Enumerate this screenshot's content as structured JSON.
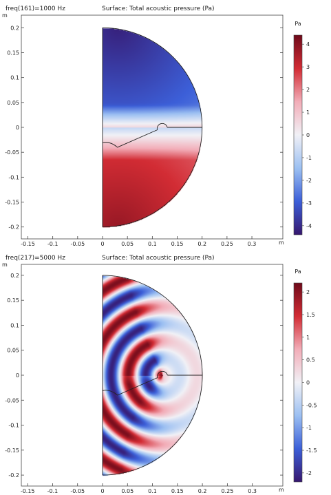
{
  "chart_data": [
    {
      "type": "heatmap",
      "header_left": "freq(161)=1000 Hz",
      "title": "Surface: Total acoustic pressure (Pa)",
      "x_unit": "m",
      "y_unit": "m",
      "x_ticks": [
        "-0.15",
        "-0.1",
        "-0.05",
        "0",
        "0.05",
        "0.1",
        "0.15",
        "0.2",
        "0.25",
        "0.3"
      ],
      "x_tick_values": [
        -0.15,
        -0.1,
        -0.05,
        0,
        0.05,
        0.1,
        0.15,
        0.2,
        0.25,
        0.3
      ],
      "y_ticks": [
        "0.2",
        "0.15",
        "0.1",
        "0.05",
        "0",
        "-0.05",
        "-0.1",
        "-0.15",
        "-0.2"
      ],
      "y_tick_values": [
        0.2,
        0.15,
        0.1,
        0.05,
        0,
        -0.05,
        -0.1,
        -0.15,
        -0.2
      ],
      "xlim": [
        -0.16,
        0.36
      ],
      "ylim": [
        -0.22,
        0.22
      ],
      "colorbar": {
        "label": "Pa",
        "range": [
          -4.4,
          4.4
        ],
        "ticks": [
          "4",
          "3",
          "2",
          "1",
          "0",
          "-1",
          "-2",
          "-3",
          "-4"
        ],
        "tick_values": [
          4,
          3,
          2,
          1,
          0,
          -1,
          -2,
          -3,
          -4
        ]
      },
      "colormap": [
        "#36176e",
        "#3c5fd8",
        "#9cc0f2",
        "#f1f1f6",
        "#f2adb8",
        "#d22c34",
        "#6e0a1a"
      ]
    },
    {
      "type": "heatmap",
      "header_left": "freq(217)=5000 Hz",
      "title": "Surface: Total acoustic pressure (Pa)",
      "x_unit": "m",
      "y_unit": "m",
      "x_ticks": [
        "-0.15",
        "-0.1",
        "-0.05",
        "0",
        "0.05",
        "0.1",
        "0.15",
        "0.2",
        "0.25",
        "0.3"
      ],
      "x_tick_values": [
        -0.15,
        -0.1,
        -0.05,
        0,
        0.05,
        0.1,
        0.15,
        0.2,
        0.25,
        0.3
      ],
      "y_ticks": [
        "0.2",
        "0.15",
        "0.1",
        "0.05",
        "0",
        "-0.05",
        "-0.1",
        "-0.15",
        "-0.2"
      ],
      "y_tick_values": [
        0.2,
        0.15,
        0.1,
        0.05,
        0,
        -0.05,
        -0.1,
        -0.15,
        -0.2
      ],
      "xlim": [
        -0.16,
        0.36
      ],
      "ylim": [
        -0.22,
        0.22
      ],
      "colorbar": {
        "label": "Pa",
        "range": [
          -2.2,
          2.2
        ],
        "ticks": [
          "2",
          "1.5",
          "1",
          "0.5",
          "0",
          "-0.5",
          "-1",
          "-1.5",
          "-2"
        ],
        "tick_values": [
          2,
          1.5,
          1,
          0.5,
          0,
          -0.5,
          -1,
          -1.5,
          -2
        ]
      },
      "colormap": [
        "#36176e",
        "#3c5fd8",
        "#9cc0f2",
        "#f1f1f6",
        "#f2adb8",
        "#d22c34",
        "#6e0a1a"
      ]
    }
  ]
}
